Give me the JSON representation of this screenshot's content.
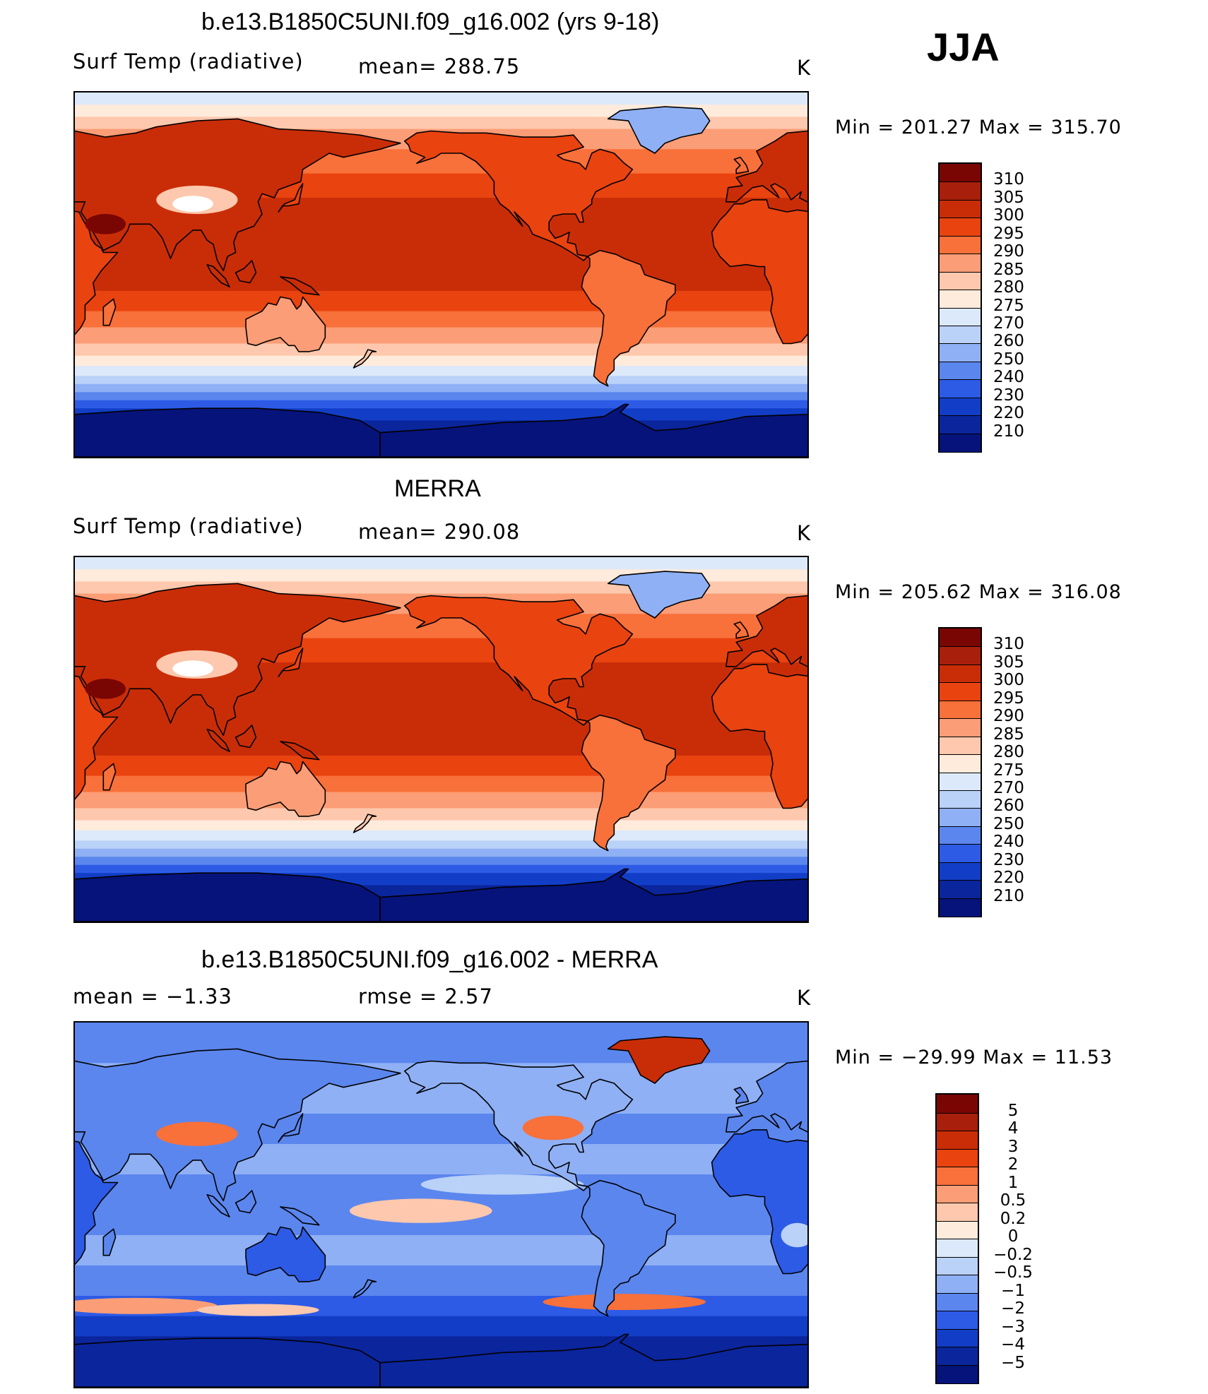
{
  "season": "JJA",
  "panels": [
    {
      "id": "model",
      "title": "b.e13.B1850C5UNI.f09_g16.002 (yrs 9-18)",
      "left_label": "Surf Temp (radiative)",
      "mid_label": "mean=  288.75",
      "units": "K",
      "minmax": "Min  =  201.27  Max  =  315.70",
      "kind": "abs",
      "mean": 288.75
    },
    {
      "id": "obs",
      "title": "MERRA",
      "left_label": "Surf Temp (radiative)",
      "mid_label": "mean=  290.08",
      "units": "K",
      "minmax": "Min  =  205.62  Max  =  316.08",
      "kind": "abs",
      "mean": 290.08
    },
    {
      "id": "diff",
      "title": "b.e13.B1850C5UNI.f09_g16.002 - MERRA",
      "left_label": "mean =    −1.33",
      "mid_label": "rmse =     2.57",
      "units": "K",
      "minmax": "Min  =  −29.99  Max  =    11.53",
      "kind": "diff",
      "mean": -1.33,
      "rmse": 2.57
    }
  ],
  "chart_data": [
    {
      "type": "heatmap",
      "title": "b.e13.B1850C5UNI.f09_g16.002 (yrs 9-18)",
      "variable": "Surf Temp (radiative)",
      "units": "K",
      "mean": 288.75,
      "min": 201.27,
      "max": 315.7,
      "levels": [
        210,
        220,
        230,
        240,
        250,
        260,
        270,
        275,
        280,
        285,
        290,
        295,
        300,
        305,
        310
      ],
      "level_labels": [
        "310",
        "305",
        "300",
        "295",
        "290",
        "285",
        "280",
        "275",
        "270",
        "260",
        "250",
        "240",
        "230",
        "220",
        "210"
      ]
    },
    {
      "type": "heatmap",
      "title": "MERRA",
      "variable": "Surf Temp (radiative)",
      "units": "K",
      "mean": 290.08,
      "min": 205.62,
      "max": 316.08,
      "levels": [
        210,
        220,
        230,
        240,
        250,
        260,
        270,
        275,
        280,
        285,
        290,
        295,
        300,
        305,
        310
      ],
      "level_labels": [
        "310",
        "305",
        "300",
        "295",
        "290",
        "285",
        "280",
        "275",
        "270",
        "260",
        "250",
        "240",
        "230",
        "220",
        "210"
      ]
    },
    {
      "type": "heatmap",
      "title": "b.e13.B1850C5UNI.f09_g16.002 - MERRA",
      "units": "K",
      "mean": -1.33,
      "rmse": 2.57,
      "min": -29.99,
      "max": 11.53,
      "levels": [
        -5,
        -4,
        -3,
        -2,
        -1,
        -0.5,
        -0.2,
        0,
        0.2,
        0.5,
        1,
        2,
        3,
        4,
        5
      ],
      "level_labels": [
        "5",
        "4",
        "3",
        "2",
        "1",
        "0.5",
        "0.2",
        "0",
        "−0.2",
        "−0.5",
        "−1",
        "−2",
        "−3",
        "−4",
        "−5"
      ]
    }
  ],
  "palette": {
    "abs": [
      "#7a0604",
      "#a81f0b",
      "#c92d08",
      "#e94310",
      "#f8703a",
      "#fb9d76",
      "#fdc8ad",
      "#feebdc",
      "#dce9fa",
      "#bad1f8",
      "#8fb0f5",
      "#5b86ee",
      "#2d5be6",
      "#123ec7",
      "#0b259c",
      "#06137a"
    ],
    "diff": [
      "#7a0604",
      "#a81f0b",
      "#c92d08",
      "#e94310",
      "#f8703a",
      "#fb9d76",
      "#fdc8ad",
      "#feebdc",
      "#dce9fa",
      "#bad1f8",
      "#8fb0f5",
      "#5b86ee",
      "#2d5be6",
      "#123ec7",
      "#0b259c",
      "#06137a"
    ]
  }
}
